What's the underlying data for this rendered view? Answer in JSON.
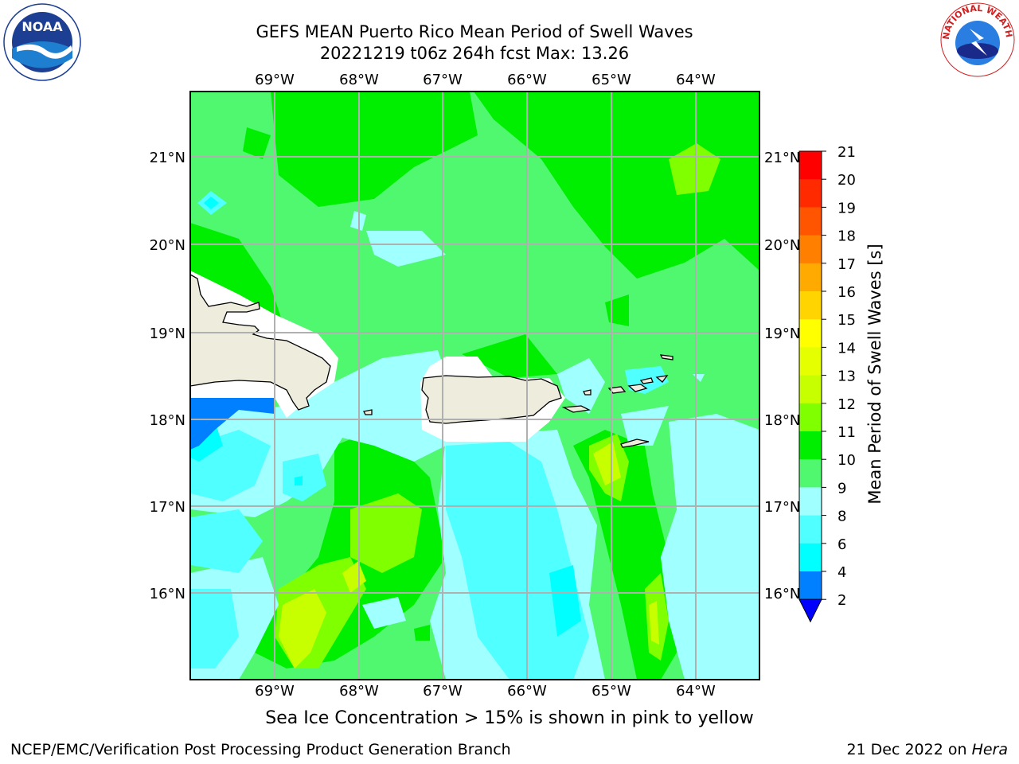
{
  "title": {
    "line1": "GEFS MEAN Puerto Rico Mean Period of Swell Waves",
    "line2": "20221219 t06z 264h fcst   Max: 13.26"
  },
  "map": {
    "lon_ticks": [
      "69°W",
      "68°W",
      "67°W",
      "66°W",
      "65°W",
      "64°W"
    ],
    "lat_ticks": [
      "21°N",
      "20°N",
      "19°N",
      "18°N",
      "17°N",
      "16°N"
    ],
    "colors": {
      "land": "#eeecdc",
      "grid": "#b0b0b0",
      "coast": "#000000"
    }
  },
  "colorbar": {
    "label": "Mean Period of Swell Waves [s]",
    "levels": [
      "21",
      "20",
      "19",
      "18",
      "17",
      "16",
      "15",
      "14",
      "13",
      "12",
      "11",
      "10",
      "9",
      "8",
      "6",
      "4",
      "2"
    ],
    "colors": [
      "#ff0000",
      "#ff2a00",
      "#ff5500",
      "#ff8000",
      "#ffaa00",
      "#ffd400",
      "#ffff00",
      "#e6ff00",
      "#c8ff00",
      "#80ff00",
      "#00ee00",
      "#50f870",
      "#a0ffff",
      "#50ffff",
      "#00ffff",
      "#0080ff",
      "#0000ff"
    ]
  },
  "note": "Sea Ice Concentration > 15% is shown in pink to yellow",
  "footer": {
    "left": "NCEP/EMC/Verification Post Processing Product Generation Branch",
    "date": "21 Dec 2022 on ",
    "host": "Hera"
  },
  "logos": {
    "noaa_text": "NOAA",
    "nws_text": "NATIONAL WEATHER SERVICE"
  }
}
